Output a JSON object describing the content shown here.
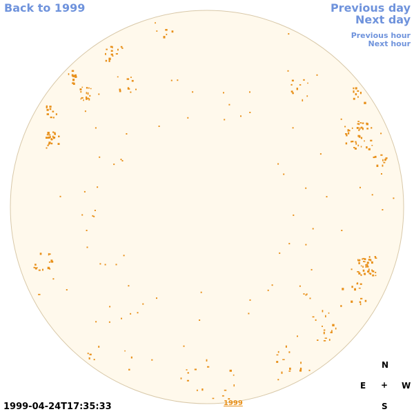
{
  "nav": {
    "back_label": "Back to 1999",
    "previous_day_label": "Previous day",
    "next_day_label": "Next day",
    "previous_hour_label": "Previous hour",
    "next_hour_label": "Next hour"
  },
  "compass": {
    "n": "N",
    "center": "+",
    "e": "E",
    "w": "W",
    "s": "S"
  },
  "timestamp": "1999-04-24T17:35:33",
  "year_link": "1999",
  "colors": {
    "link": "#6f93dc",
    "disk_fill": "#fff9ec",
    "disk_border": "#d8c8a8",
    "marker": "#e8901a"
  },
  "icons": {
    "disk": "sun-disk-icon"
  }
}
